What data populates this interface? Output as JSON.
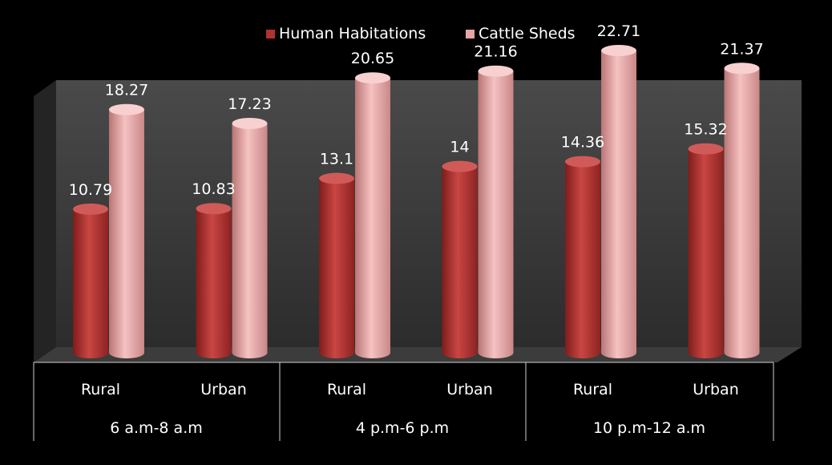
{
  "chart_data": {
    "type": "bar",
    "title": "",
    "xlabel": "",
    "ylabel": "",
    "ylim": [
      0,
      25
    ],
    "grid": false,
    "legend_position": "top-center",
    "groups": [
      {
        "label": "6 a.m-8 a.m",
        "categories": [
          "Rural",
          "Urban"
        ]
      },
      {
        "label": "4 p.m-6 p.m",
        "categories": [
          "Rural",
          "Urban"
        ]
      },
      {
        "label": "10 p.m-12 a.m",
        "categories": [
          "Rural",
          "Urban"
        ]
      }
    ],
    "categories": [
      "Rural",
      "Urban",
      "Rural",
      "Urban",
      "Rural",
      "Urban"
    ],
    "series": [
      {
        "name": "Human Habitations",
        "color": "#b3312f",
        "values": [
          10.79,
          10.83,
          13.1,
          14,
          14.36,
          15.32
        ]
      },
      {
        "name": "Cattle Sheds",
        "color": "#e6a4a4",
        "values": [
          18.27,
          17.23,
          20.65,
          21.16,
          22.71,
          21.37
        ]
      }
    ],
    "data_labels": [
      [
        "10.79",
        "10.83",
        "13.1",
        "14",
        "14.36",
        "15.32"
      ],
      [
        "18.27",
        "17.23",
        "20.65",
        "21.16",
        "22.71",
        "21.37"
      ]
    ]
  },
  "colors": {
    "background": "#000000",
    "wall": "#3a3a3a",
    "floor": "#2a2a2a",
    "text": "#ffffff",
    "table_lines": "#cfcfcf"
  }
}
